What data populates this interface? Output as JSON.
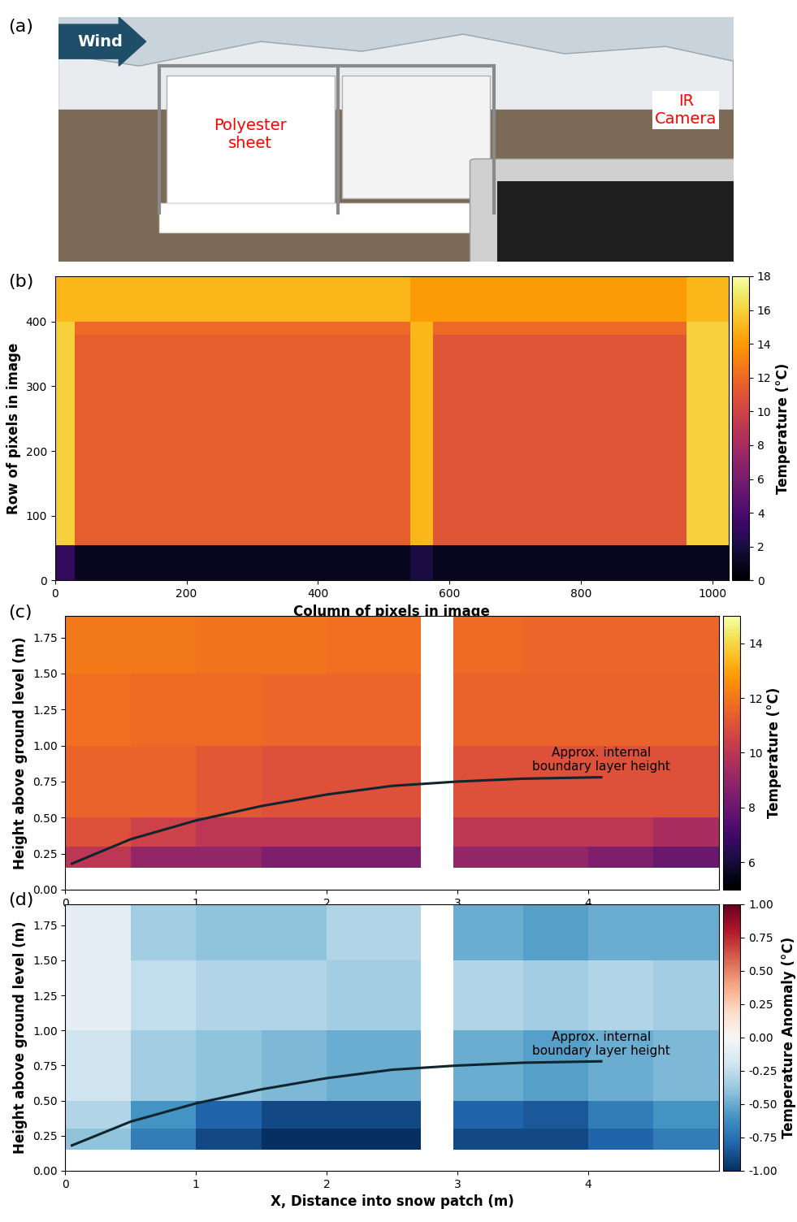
{
  "chart_data": [
    {
      "type": "diagram",
      "panel_label": "(a)",
      "arrow_text": "Wind",
      "labels": [
        "Polyester\nsheet",
        "IR\nCamera"
      ]
    },
    {
      "type": "heatmap",
      "panel_label": "(b)",
      "xlabel": "Column of pixels in image",
      "ylabel": "Row of pixels in image",
      "xlim": [
        0,
        1024
      ],
      "ylim": [
        0,
        470
      ],
      "xticks": [
        0,
        200,
        400,
        600,
        800,
        1000
      ],
      "yticks": [
        0,
        100,
        200,
        300,
        400
      ],
      "x_edges": [
        0,
        30,
        540,
        575,
        960,
        1024
      ],
      "y_edges": [
        0,
        55,
        380,
        400,
        470
      ],
      "cells": [
        [
          3,
          1,
          2,
          1,
          1
        ],
        [
          16,
          11.5,
          15,
          11,
          16
        ],
        [
          16,
          12,
          15,
          12,
          16
        ],
        [
          15,
          15,
          14,
          14,
          15
        ]
      ],
      "colorbar_label": "Temperature (°C)",
      "colorbar_range": [
        0,
        18
      ],
      "colorbar_ticks": [
        0,
        2,
        4,
        6,
        8,
        10,
        12,
        14,
        16,
        18
      ]
    },
    {
      "type": "heatmap",
      "panel_label": "(c)",
      "xlabel": "X, Distance into snow patch (m)",
      "ylabel": "Height above ground level (m)",
      "xlim": [
        0,
        5
      ],
      "ylim": [
        0,
        1.9
      ],
      "xticks": [
        0,
        1,
        2,
        3,
        4
      ],
      "yticks": [
        {
          "value": 0,
          "label": "0.00"
        },
        {
          "value": 0.25,
          "label": "0.25"
        },
        {
          "value": 0.5,
          "label": "0.50"
        },
        {
          "value": 0.75,
          "label": "0.75"
        },
        {
          "value": 1.0,
          "label": "1.00"
        },
        {
          "value": 1.25,
          "label": "1.25"
        },
        {
          "value": 1.5,
          "label": "1.50"
        },
        {
          "value": 1.75,
          "label": "1.75"
        }
      ],
      "x_edges": [
        0,
        0.5,
        1,
        1.5,
        2,
        2.72,
        2.97,
        3.5,
        4,
        4.5,
        5
      ],
      "y_edges": [
        0,
        0.15,
        0.3,
        0.5,
        1.0,
        1.5,
        1.9
      ],
      "cells": [
        [
          null,
          null,
          null,
          null,
          null,
          null,
          null,
          null,
          null,
          null
        ],
        [
          10,
          9,
          9,
          8.5,
          8.5,
          null,
          9,
          9,
          8.5,
          8
        ],
        [
          11,
          10.5,
          10,
          10,
          10,
          null,
          10,
          10,
          10,
          9.5
        ],
        [
          11.5,
          11.5,
          11.2,
          11,
          11,
          null,
          11,
          11,
          11,
          11
        ],
        [
          11.8,
          11.7,
          11.7,
          11.6,
          11.6,
          null,
          11.5,
          11.5,
          11.5,
          11.5
        ],
        [
          12,
          12,
          11.9,
          11.9,
          11.8,
          null,
          11.7,
          11.6,
          11.6,
          11.6
        ]
      ],
      "boundary_layer": {
        "x": [
          0.05,
          0.5,
          1,
          1.5,
          2,
          2.5,
          3,
          3.5,
          4.1
        ],
        "y": [
          0.18,
          0.35,
          0.48,
          0.58,
          0.66,
          0.72,
          0.75,
          0.77,
          0.78
        ]
      },
      "annotation": "Approx. internal\nboundary layer height",
      "colorbar_label": "Temperature (°C)",
      "colorbar_range": [
        5,
        15
      ],
      "colorbar_ticks": [
        6,
        8,
        10,
        12,
        14
      ]
    },
    {
      "type": "heatmap",
      "panel_label": "(d)",
      "xlabel": "X, Distance into snow patch (m)",
      "ylabel": "Height above ground level (m)",
      "xlim": [
        0,
        5
      ],
      "ylim": [
        0,
        1.9
      ],
      "xticks": [
        0,
        1,
        2,
        3,
        4
      ],
      "yticks": [
        {
          "value": 0,
          "label": "0.00"
        },
        {
          "value": 0.25,
          "label": "0.25"
        },
        {
          "value": 0.5,
          "label": "0.50"
        },
        {
          "value": 0.75,
          "label": "0.75"
        },
        {
          "value": 1.0,
          "label": "1.00"
        },
        {
          "value": 1.25,
          "label": "1.25"
        },
        {
          "value": 1.5,
          "label": "1.50"
        },
        {
          "value": 1.75,
          "label": "1.75"
        }
      ],
      "x_edges": [
        0,
        0.5,
        1,
        1.5,
        2,
        2.72,
        2.97,
        3.5,
        4,
        4.5,
        5
      ],
      "y_edges": [
        0,
        0.15,
        0.3,
        0.5,
        1.0,
        1.5,
        1.9
      ],
      "cells": [
        [
          null,
          null,
          null,
          null,
          null,
          null,
          null,
          null,
          null,
          null
        ],
        [
          -0.4,
          -0.7,
          -0.9,
          -1,
          -1,
          null,
          -0.9,
          -0.9,
          -0.8,
          -0.7
        ],
        [
          -0.3,
          -0.6,
          -0.8,
          -0.9,
          -0.9,
          null,
          -0.8,
          -0.85,
          -0.7,
          -0.6
        ],
        [
          -0.2,
          -0.35,
          -0.4,
          -0.45,
          -0.5,
          null,
          -0.5,
          -0.55,
          -0.5,
          -0.45
        ],
        [
          -0.1,
          -0.25,
          -0.3,
          -0.3,
          -0.35,
          null,
          -0.3,
          -0.35,
          -0.3,
          -0.35
        ],
        [
          -0.1,
          -0.35,
          -0.4,
          -0.4,
          -0.3,
          null,
          -0.5,
          -0.55,
          -0.5,
          -0.5
        ]
      ],
      "boundary_layer": {
        "x": [
          0.05,
          0.5,
          1,
          1.5,
          2,
          2.5,
          3,
          3.5,
          4.1
        ],
        "y": [
          0.18,
          0.35,
          0.48,
          0.58,
          0.66,
          0.72,
          0.75,
          0.77,
          0.78
        ]
      },
      "annotation": "Approx. internal\nboundary layer height",
      "colorbar_label": "Temperature Anomaly (°C)",
      "colorbar_range": [
        -1.0,
        1.0
      ],
      "colorbar_ticks": [
        {
          "value": -1.0,
          "label": "-1.00"
        },
        {
          "value": -0.75,
          "label": "-0.75"
        },
        {
          "value": -0.5,
          "label": "-0.50"
        },
        {
          "value": -0.25,
          "label": "-0.25"
        },
        {
          "value": 0.0,
          "label": "0.00"
        },
        {
          "value": 0.25,
          "label": "0.25"
        },
        {
          "value": 0.5,
          "label": "0.50"
        },
        {
          "value": 0.75,
          "label": "0.75"
        },
        {
          "value": 1.0,
          "label": "1.00"
        }
      ]
    }
  ]
}
